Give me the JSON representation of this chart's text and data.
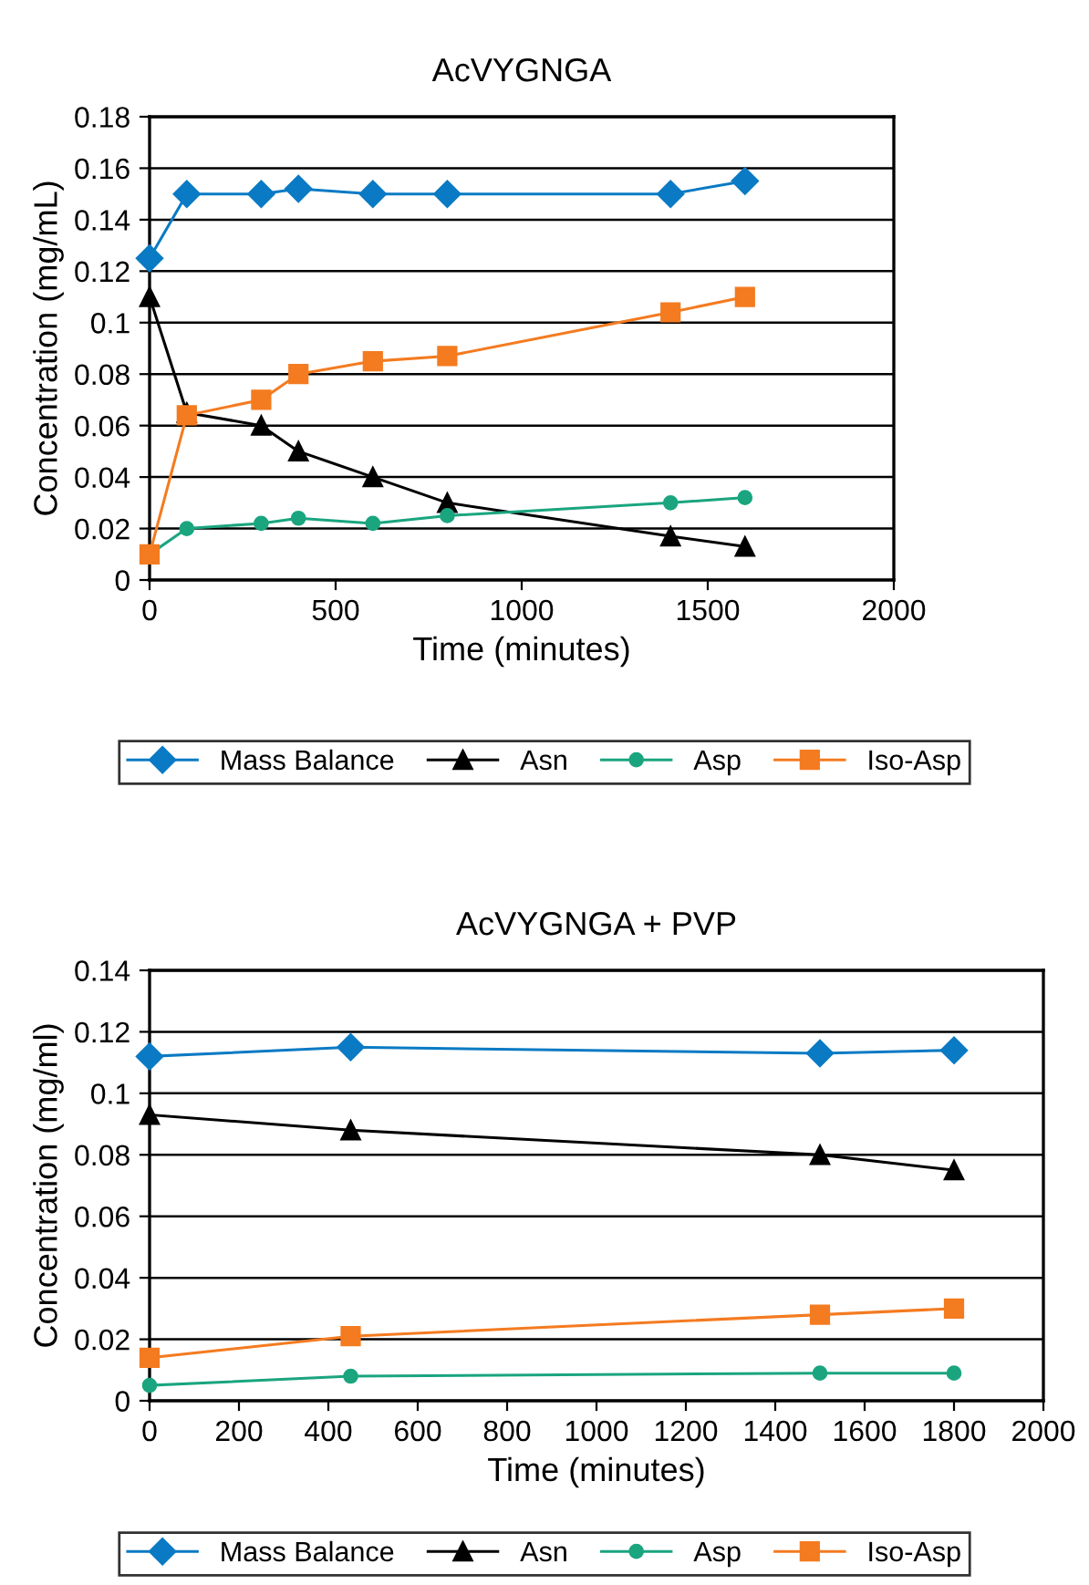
{
  "chart_data": [
    {
      "type": "line",
      "title": "AcVYGNGA",
      "xlabel": "Time (minutes)",
      "ylabel": "Concentration (mg/mL)",
      "xlim": [
        0,
        2000
      ],
      "xticks": [
        0,
        500,
        1000,
        1500,
        2000
      ],
      "ylim": [
        0,
        0.18
      ],
      "yticks": [
        0,
        0.02,
        0.04,
        0.06,
        0.08,
        0.1,
        0.12,
        0.14,
        0.16,
        0.18
      ],
      "grid": "y",
      "legend": "bottom",
      "x": [
        0,
        100,
        300,
        400,
        600,
        800,
        1400,
        1600
      ],
      "series": [
        {
          "name": "Mass Balance",
          "color": "#0a7ac4",
          "marker": "diamond",
          "values": [
            0.125,
            0.15,
            0.15,
            0.152,
            0.15,
            0.15,
            0.15,
            0.155
          ]
        },
        {
          "name": "Asn",
          "color": "#000000",
          "marker": "triangle",
          "values": [
            0.11,
            0.065,
            0.06,
            0.05,
            0.04,
            0.03,
            0.017,
            0.013
          ]
        },
        {
          "name": "Asp",
          "color": "#1aa57f",
          "marker": "circle",
          "values": [
            0.01,
            0.02,
            0.022,
            0.024,
            0.022,
            0.025,
            0.03,
            0.032
          ]
        },
        {
          "name": "Iso-Asp",
          "color": "#f47b20",
          "marker": "square",
          "values": [
            0.01,
            0.064,
            0.07,
            0.08,
            0.085,
            0.087,
            0.104,
            0.11
          ]
        }
      ]
    },
    {
      "type": "line",
      "title": "AcVYGNGA + PVP",
      "xlabel": "Time (minutes)",
      "ylabel": "Concentration (mg/ml)",
      "xlim": [
        0,
        2000
      ],
      "xticks": [
        0,
        200,
        400,
        600,
        800,
        1000,
        1200,
        1400,
        1600,
        1800,
        2000
      ],
      "ylim": [
        0,
        0.14
      ],
      "yticks": [
        0,
        0.02,
        0.04,
        0.06,
        0.08,
        0.1,
        0.12,
        0.14
      ],
      "grid": "y",
      "legend": "bottom",
      "x": [
        0,
        450,
        1500,
        1800
      ],
      "series": [
        {
          "name": "Mass Balance",
          "color": "#0a7ac4",
          "marker": "diamond",
          "values": [
            0.112,
            0.115,
            0.113,
            0.114
          ]
        },
        {
          "name": "Asn",
          "color": "#000000",
          "marker": "triangle",
          "values": [
            0.093,
            0.088,
            0.08,
            0.075
          ]
        },
        {
          "name": "Asp",
          "color": "#1aa57f",
          "marker": "circle",
          "values": [
            0.005,
            0.008,
            0.009,
            0.009
          ]
        },
        {
          "name": "Iso-Asp",
          "color": "#f47b20",
          "marker": "square",
          "values": [
            0.014,
            0.021,
            0.028,
            0.03
          ]
        }
      ]
    }
  ]
}
